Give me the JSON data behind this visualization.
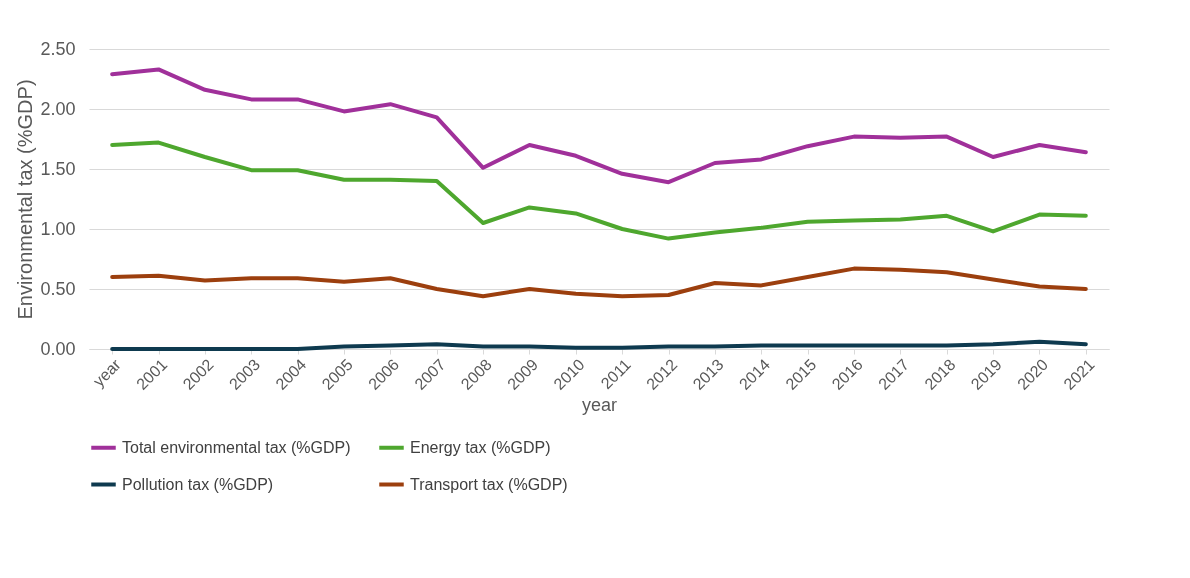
{
  "chart_data": {
    "type": "line",
    "xlabel": "year",
    "ylabel": "Environmental tax (%GDP)",
    "categories": [
      "year",
      "2001",
      "2002",
      "2003",
      "2004",
      "2005",
      "2006",
      "2007",
      "2008",
      "2009",
      "2010",
      "2011",
      "2012",
      "2013",
      "2014",
      "2015",
      "2016",
      "2017",
      "2018",
      "2019",
      "2020",
      "2021"
    ],
    "series": [
      {
        "name": "Total environmental tax (%GDP)",
        "color": "#a0309a",
        "values": [
          2.29,
          2.33,
          2.16,
          2.08,
          2.08,
          1.98,
          2.04,
          1.93,
          1.51,
          1.7,
          1.61,
          1.46,
          1.39,
          1.55,
          1.58,
          1.69,
          1.77,
          1.76,
          1.77,
          1.6,
          1.7,
          1.64
        ]
      },
      {
        "name": "Energy tax (%GDP)",
        "color": "#4ea72e",
        "values": [
          1.7,
          1.72,
          1.6,
          1.49,
          1.49,
          1.41,
          1.41,
          1.4,
          1.05,
          1.18,
          1.13,
          1.0,
          0.92,
          0.97,
          1.01,
          1.06,
          1.07,
          1.08,
          1.11,
          0.98,
          1.12,
          1.11
        ]
      },
      {
        "name": "Pollution tax (%GDP)",
        "color": "#0e3a4f",
        "values": [
          0.0,
          0.0,
          0.0,
          0.0,
          0.0,
          0.02,
          0.03,
          0.04,
          0.02,
          0.02,
          0.01,
          0.01,
          0.02,
          0.02,
          0.03,
          0.03,
          0.03,
          0.03,
          0.03,
          0.04,
          0.06,
          0.04
        ]
      },
      {
        "name": "Transport tax (%GDP)",
        "color": "#9c3f0e",
        "values": [
          0.6,
          0.61,
          0.57,
          0.59,
          0.59,
          0.56,
          0.59,
          0.5,
          0.44,
          0.5,
          0.46,
          0.44,
          0.45,
          0.55,
          0.53,
          0.6,
          0.67,
          0.66,
          0.64,
          0.58,
          0.52,
          0.5
        ]
      }
    ],
    "ylim": [
      0,
      2.5
    ],
    "yticks": [
      {
        "value": 0,
        "label": "0.00"
      },
      {
        "value": 0.5,
        "label": "0.50"
      },
      {
        "value": 1,
        "label": "1.00"
      },
      {
        "value": 1.5,
        "label": "1.50"
      },
      {
        "value": 2,
        "label": "2.00"
      },
      {
        "value": 2.5,
        "label": "2.50"
      }
    ],
    "grid": "y",
    "legend": "bottom",
    "marker": "none",
    "line_style": "solid"
  }
}
